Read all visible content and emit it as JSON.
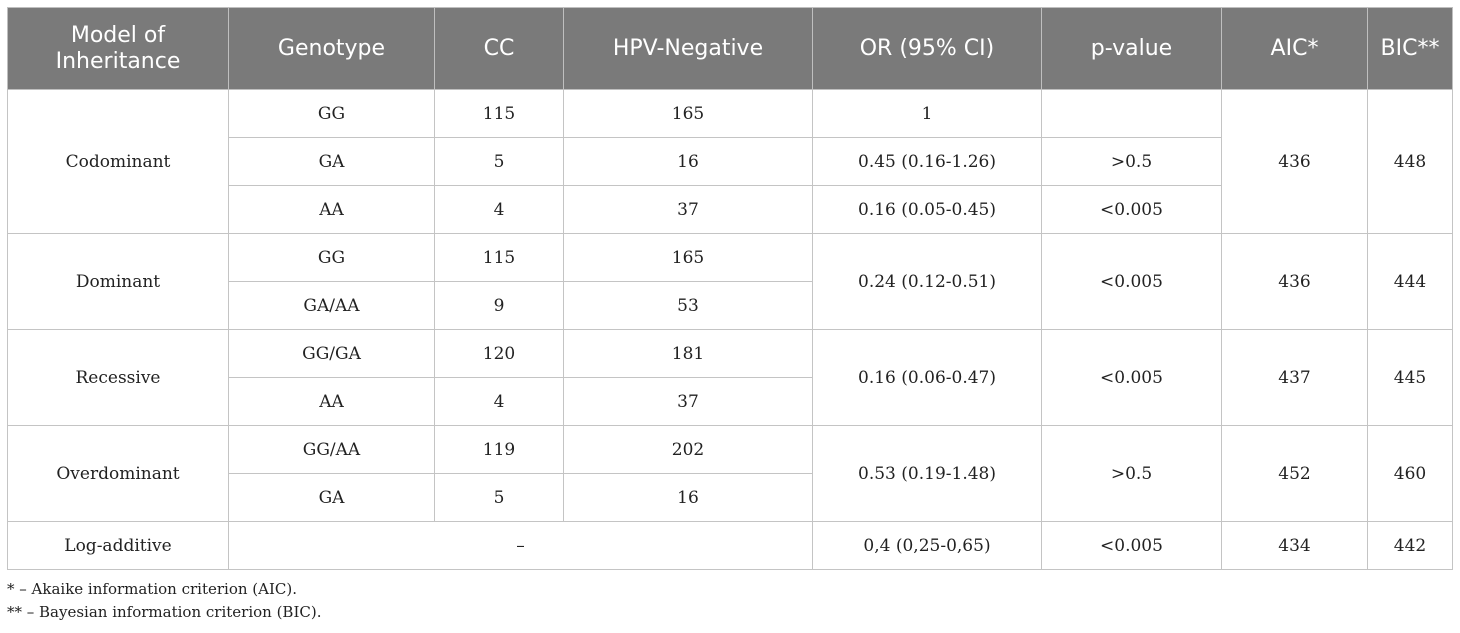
{
  "table": {
    "headers": [
      "Model of Inheritance",
      "Genotype",
      "CC",
      "HPV-Negative",
      "OR (95% CI)",
      "p-value",
      "AIC*",
      "BIC**"
    ],
    "codominant": {
      "model": "Codominant",
      "rows": [
        {
          "genotype": "GG",
          "cc": "115",
          "hpv": "165",
          "or": "1",
          "p": ""
        },
        {
          "genotype": "GA",
          "cc": "5",
          "hpv": "16",
          "or": "0.45 (0.16-1.26)",
          "p": ">0.5"
        },
        {
          "genotype": "AA",
          "cc": "4",
          "hpv": "37",
          "or": "0.16 (0.05-0.45)",
          "p": "<0.005"
        }
      ],
      "aic": "436",
      "bic": "448"
    },
    "dominant": {
      "model": "Dominant",
      "rows": [
        {
          "genotype": "GG",
          "cc": "115",
          "hpv": "165"
        },
        {
          "genotype": "GA/AA",
          "cc": "9",
          "hpv": "53"
        }
      ],
      "or": "0.24 (0.12-0.51)",
      "p": "<0.005",
      "aic": "436",
      "bic": "444"
    },
    "recessive": {
      "model": "Recessive",
      "rows": [
        {
          "genotype": "GG/GA",
          "cc": "120",
          "hpv": "181"
        },
        {
          "genotype": "AA",
          "cc": "4",
          "hpv": "37"
        }
      ],
      "or": "0.16 (0.06-0.47)",
      "p": "<0.005",
      "aic": "437",
      "bic": "445"
    },
    "overdominant": {
      "model": "Overdominant",
      "rows": [
        {
          "genotype": "GG/AA",
          "cc": "119",
          "hpv": "202"
        },
        {
          "genotype": "GA",
          "cc": "5",
          "hpv": "16"
        }
      ],
      "or": "0.53 (0.19-1.48)",
      "p": ">0.5",
      "aic": "452",
      "bic": "460"
    },
    "logadditive": {
      "model": "Log-additive",
      "span": "–",
      "or": "0,4 (0,25-0,65)",
      "p": "<0.005",
      "aic": "434",
      "bic": "442"
    }
  },
  "footnotes": [
    "* – Akaike information criterion (AIC).",
    "** – Bayesian information criterion (BIC)."
  ]
}
